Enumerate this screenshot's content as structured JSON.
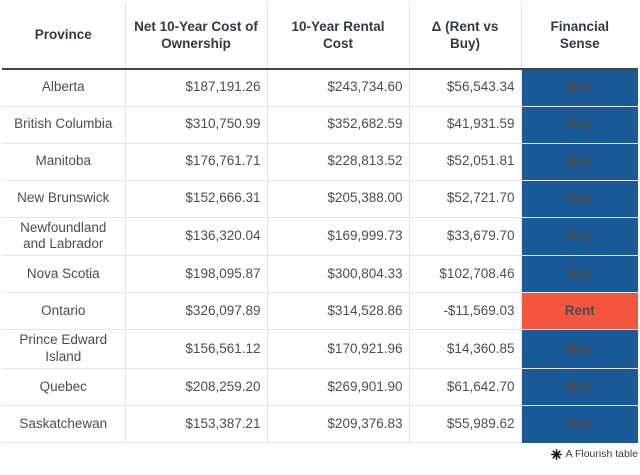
{
  "chart_data": {
    "type": "table",
    "title": "",
    "columns": [
      "Province",
      "Net 10-Year Cost of Ownership",
      "10-Year Rental Cost",
      "Δ (Rent vs Buy)",
      "Financial Sense"
    ],
    "rows": [
      [
        "Alberta",
        "$187,191.26",
        "$243,734.60",
        "$56,543.34",
        "Buy"
      ],
      [
        "British Columbia",
        "$310,750.99",
        "$352,682.59",
        "$41,931.59",
        "Buy"
      ],
      [
        "Manitoba",
        "$176,761.71",
        "$228,813.52",
        "$52,051.81",
        "Buy"
      ],
      [
        "New Brunswick",
        "$152,666.31",
        "$205,388.00",
        "$52,721.70",
        "Buy"
      ],
      [
        "Newfoundland and Labrador",
        "$136,320.04",
        "$169,999.73",
        "$33,679.70",
        "Buy"
      ],
      [
        "Nova Scotia",
        "$198,095.87",
        "$300,804.33",
        "$102,708.46",
        "Buy"
      ],
      [
        "Ontario",
        "$326,097.89",
        "$314,528.86",
        "-$11,569.03",
        "Rent"
      ],
      [
        "Prince Edward Island",
        "$156,561.12",
        "$170,921.96",
        "$14,360.85",
        "Buy"
      ],
      [
        "Quebec",
        "$208,259.20",
        "$269,901.90",
        "$61,642.70",
        "Buy"
      ],
      [
        "Saskatchewan",
        "$153,387.21",
        "$209,376.83",
        "$55,989.62",
        "Buy"
      ]
    ]
  },
  "colors": {
    "buy": "#1a5a98",
    "rent": "#f4563d",
    "header_text": "#333a42",
    "body_text": "#4d4d4d"
  },
  "footer": {
    "label": "A Flourish table"
  }
}
